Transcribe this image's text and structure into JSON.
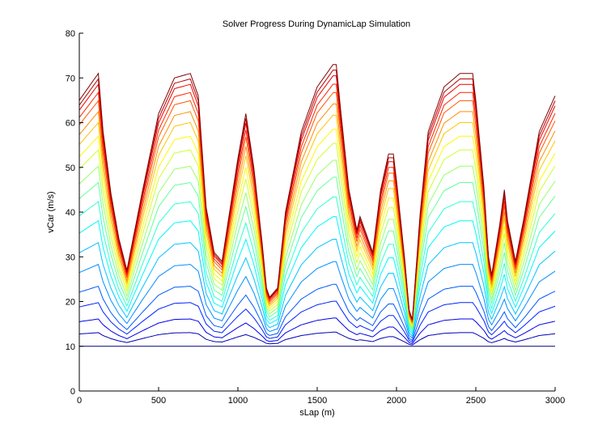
{
  "chart_data": {
    "type": "line",
    "title": "Solver Progress During DynamicLap Simulation",
    "xlabel": "sLap (m)",
    "ylabel": "vCar (m/s)",
    "xlim": [
      0,
      3000
    ],
    "ylim": [
      0,
      80
    ],
    "xticks": [
      0,
      500,
      1000,
      1500,
      2000,
      2500,
      3000
    ],
    "yticks": [
      0,
      10,
      20,
      30,
      40,
      50,
      60,
      70,
      80
    ],
    "grid": false,
    "legend": "none",
    "colormap": "jet (blue = early iterations, red = final iteration)",
    "x": [
      0,
      100,
      120,
      150,
      200,
      250,
      300,
      400,
      500,
      600,
      700,
      750,
      800,
      850,
      900,
      1000,
      1050,
      1100,
      1150,
      1180,
      1200,
      1250,
      1300,
      1400,
      1500,
      1600,
      1620,
      1650,
      1700,
      1750,
      1770,
      1800,
      1850,
      1900,
      1950,
      1980,
      2000,
      2050,
      2080,
      2100,
      2150,
      2200,
      2300,
      2400,
      2480,
      2500,
      2550,
      2580,
      2600,
      2650,
      2680,
      2700,
      2750,
      2800,
      2900,
      3000
    ],
    "final_profile": [
      65,
      70,
      71,
      58,
      44,
      34,
      27,
      45,
      62,
      70,
      71,
      66,
      41,
      31,
      29,
      52,
      62,
      50,
      34,
      23,
      21,
      23,
      40,
      58,
      68,
      73,
      73,
      62,
      45,
      36,
      39,
      36,
      31,
      45,
      53,
      53,
      47,
      30,
      18,
      16,
      40,
      58,
      68,
      71,
      71,
      65,
      46,
      30,
      26,
      37,
      45,
      38,
      29,
      38,
      58,
      66
    ],
    "fractions": [
      0,
      0.05,
      0.1,
      0.16,
      0.22,
      0.3,
      0.38,
      0.46,
      0.53,
      0.6,
      0.66,
      0.72,
      0.77,
      0.82,
      0.86,
      0.9,
      0.93,
      0.96,
      0.98,
      1.0
    ],
    "series_note": "Each iteration curve = 10 + fraction * (final_profile - 10); first iteration is a constant 10 m/s line"
  }
}
